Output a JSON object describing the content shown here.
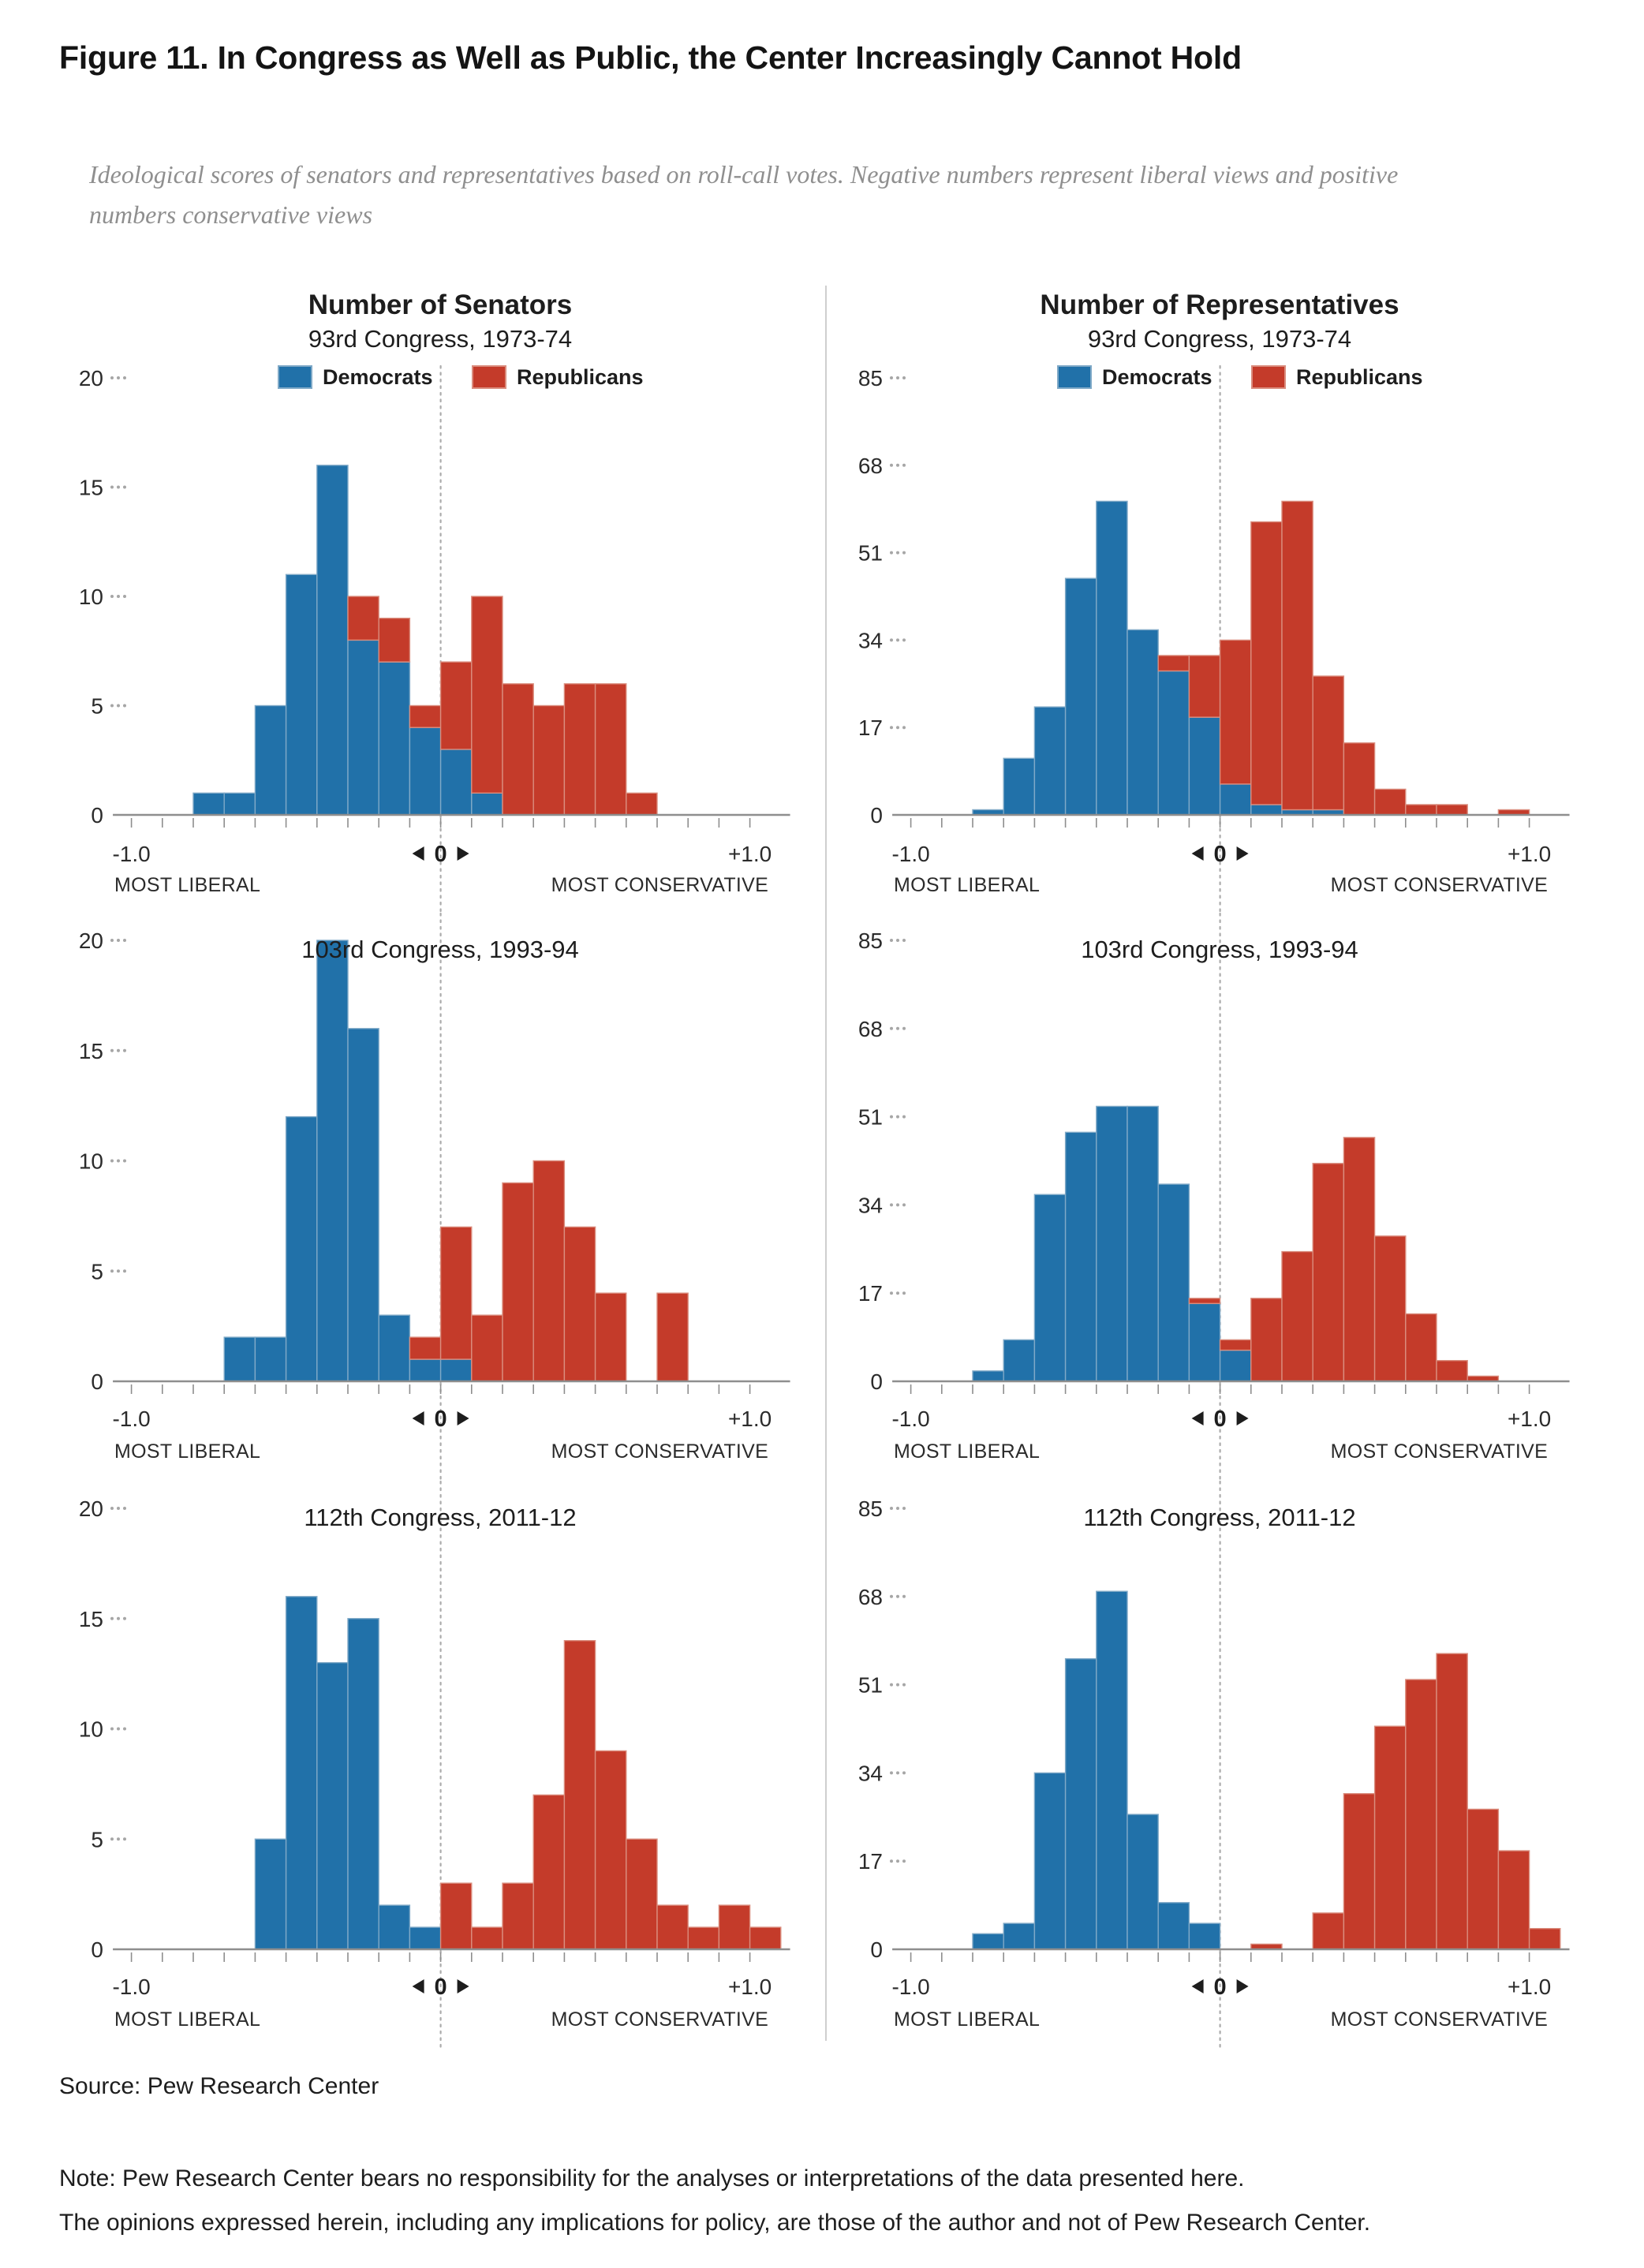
{
  "page": {
    "title": "Figure 11. In Congress as Well as Public, the Center Increasingly Cannot Hold",
    "subtitle": "Ideological scores of senators and representatives based on roll-call votes. Negative numbers represent liberal views and positive numbers conservative views",
    "source": "Source: Pew Research Center",
    "note_line1": "Note: Pew Research Center bears no responsibility for the analyses or interpretations of the data presented here.",
    "note_line2": "The opinions expressed herein, including any implications for policy, are those of the author and not of Pew Research Center."
  },
  "colors": {
    "democrat": "#2171a9",
    "democrat_edge": "#7fa9c7",
    "republican": "#c43b2a",
    "republican_edge": "#da8d7e",
    "axis": "#8e8e8e",
    "grid_dots": "#a6a6a6",
    "zero_line": "#ababab",
    "text": "#2b2b2b",
    "title": "#1d1d1d"
  },
  "legend": {
    "democrats": "Democrats",
    "republicans": "Republicans"
  },
  "axis_labels": {
    "left": "-1.0",
    "center": "0",
    "right": "+1.0",
    "left_caption": "MOST LIBERAL",
    "right_caption": "MOST CONSERVATIVE"
  },
  "chart_data": [
    {
      "type": "bar",
      "subtype": "stacked-histogram",
      "column": "senators",
      "title": "Number of Senators",
      "congress_label": "93rd Congress, 1973-74",
      "show_header": true,
      "show_legend": true,
      "xlabel_range": [
        -1.0,
        1.0
      ],
      "bin_width": 0.1,
      "y_max": 20,
      "y_ticks": [
        0,
        5,
        10,
        15,
        20
      ],
      "series_names": [
        "Democrats",
        "Republicans"
      ],
      "bins": [
        {
          "x": -0.8,
          "dem": 1,
          "rep": 0
        },
        {
          "x": -0.7,
          "dem": 1,
          "rep": 0
        },
        {
          "x": -0.6,
          "dem": 5,
          "rep": 0
        },
        {
          "x": -0.5,
          "dem": 11,
          "rep": 0
        },
        {
          "x": -0.4,
          "dem": 16,
          "rep": 0
        },
        {
          "x": -0.3,
          "dem": 8,
          "rep": 2
        },
        {
          "x": -0.2,
          "dem": 7,
          "rep": 2
        },
        {
          "x": -0.1,
          "dem": 4,
          "rep": 1
        },
        {
          "x": 0.0,
          "dem": 3,
          "rep": 4
        },
        {
          "x": 0.1,
          "dem": 1,
          "rep": 9
        },
        {
          "x": 0.2,
          "dem": 0,
          "rep": 6
        },
        {
          "x": 0.3,
          "dem": 0,
          "rep": 5
        },
        {
          "x": 0.4,
          "dem": 0,
          "rep": 6
        },
        {
          "x": 0.5,
          "dem": 0,
          "rep": 6
        },
        {
          "x": 0.6,
          "dem": 0,
          "rep": 1
        }
      ]
    },
    {
      "type": "bar",
      "subtype": "stacked-histogram",
      "column": "representatives",
      "title": "Number of Representatives",
      "congress_label": "93rd Congress, 1973-74",
      "show_header": true,
      "show_legend": true,
      "xlabel_range": [
        -1.0,
        1.0
      ],
      "bin_width": 0.1,
      "y_max": 85,
      "y_ticks": [
        0,
        17,
        34,
        51,
        68,
        85
      ],
      "series_names": [
        "Democrats",
        "Republicans"
      ],
      "bins": [
        {
          "x": -0.8,
          "dem": 1,
          "rep": 0
        },
        {
          "x": -0.7,
          "dem": 11,
          "rep": 0
        },
        {
          "x": -0.6,
          "dem": 21,
          "rep": 0
        },
        {
          "x": -0.5,
          "dem": 46,
          "rep": 0
        },
        {
          "x": -0.4,
          "dem": 61,
          "rep": 0
        },
        {
          "x": -0.3,
          "dem": 36,
          "rep": 0
        },
        {
          "x": -0.2,
          "dem": 28,
          "rep": 3
        },
        {
          "x": -0.1,
          "dem": 19,
          "rep": 12
        },
        {
          "x": 0.0,
          "dem": 6,
          "rep": 28
        },
        {
          "x": 0.1,
          "dem": 2,
          "rep": 55
        },
        {
          "x": 0.2,
          "dem": 1,
          "rep": 60
        },
        {
          "x": 0.3,
          "dem": 1,
          "rep": 26
        },
        {
          "x": 0.4,
          "dem": 0,
          "rep": 14
        },
        {
          "x": 0.5,
          "dem": 0,
          "rep": 5
        },
        {
          "x": 0.6,
          "dem": 0,
          "rep": 2
        },
        {
          "x": 0.7,
          "dem": 0,
          "rep": 2
        },
        {
          "x": 0.9,
          "dem": 0,
          "rep": 1
        }
      ]
    },
    {
      "type": "bar",
      "subtype": "stacked-histogram",
      "column": "senators",
      "title": "Number of Senators",
      "congress_label": "103rd Congress, 1993-94",
      "show_header": false,
      "show_legend": false,
      "xlabel_range": [
        -1.0,
        1.0
      ],
      "bin_width": 0.1,
      "y_max": 20,
      "y_ticks": [
        0,
        5,
        10,
        15,
        20
      ],
      "series_names": [
        "Democrats",
        "Republicans"
      ],
      "bins": [
        {
          "x": -0.7,
          "dem": 2,
          "rep": 0
        },
        {
          "x": -0.6,
          "dem": 2,
          "rep": 0
        },
        {
          "x": -0.5,
          "dem": 12,
          "rep": 0
        },
        {
          "x": -0.4,
          "dem": 20,
          "rep": 0
        },
        {
          "x": -0.3,
          "dem": 16,
          "rep": 0
        },
        {
          "x": -0.2,
          "dem": 3,
          "rep": 0
        },
        {
          "x": -0.1,
          "dem": 1,
          "rep": 1
        },
        {
          "x": 0.0,
          "dem": 1,
          "rep": 6
        },
        {
          "x": 0.1,
          "dem": 0,
          "rep": 3
        },
        {
          "x": 0.2,
          "dem": 0,
          "rep": 9
        },
        {
          "x": 0.3,
          "dem": 0,
          "rep": 10
        },
        {
          "x": 0.4,
          "dem": 0,
          "rep": 7
        },
        {
          "x": 0.5,
          "dem": 0,
          "rep": 4
        },
        {
          "x": 0.7,
          "dem": 0,
          "rep": 4
        }
      ]
    },
    {
      "type": "bar",
      "subtype": "stacked-histogram",
      "column": "representatives",
      "title": "Number of Representatives",
      "congress_label": "103rd Congress, 1993-94",
      "show_header": false,
      "show_legend": false,
      "xlabel_range": [
        -1.0,
        1.0
      ],
      "bin_width": 0.1,
      "y_max": 85,
      "y_ticks": [
        0,
        17,
        34,
        51,
        68,
        85
      ],
      "series_names": [
        "Democrats",
        "Republicans"
      ],
      "bins": [
        {
          "x": -0.8,
          "dem": 2,
          "rep": 0
        },
        {
          "x": -0.7,
          "dem": 8,
          "rep": 0
        },
        {
          "x": -0.6,
          "dem": 36,
          "rep": 0
        },
        {
          "x": -0.5,
          "dem": 48,
          "rep": 0
        },
        {
          "x": -0.4,
          "dem": 53,
          "rep": 0
        },
        {
          "x": -0.3,
          "dem": 53,
          "rep": 0
        },
        {
          "x": -0.2,
          "dem": 38,
          "rep": 0
        },
        {
          "x": -0.1,
          "dem": 15,
          "rep": 1
        },
        {
          "x": 0.0,
          "dem": 6,
          "rep": 2
        },
        {
          "x": 0.1,
          "dem": 0,
          "rep": 16
        },
        {
          "x": 0.2,
          "dem": 0,
          "rep": 25
        },
        {
          "x": 0.3,
          "dem": 0,
          "rep": 42
        },
        {
          "x": 0.4,
          "dem": 0,
          "rep": 47
        },
        {
          "x": 0.5,
          "dem": 0,
          "rep": 28
        },
        {
          "x": 0.6,
          "dem": 0,
          "rep": 13
        },
        {
          "x": 0.7,
          "dem": 0,
          "rep": 4
        },
        {
          "x": 0.8,
          "dem": 0,
          "rep": 1
        }
      ]
    },
    {
      "type": "bar",
      "subtype": "stacked-histogram",
      "column": "senators",
      "title": "Number of Senators",
      "congress_label": "112th Congress, 2011-12",
      "show_header": false,
      "show_legend": false,
      "xlabel_range": [
        -1.0,
        1.0
      ],
      "bin_width": 0.1,
      "y_max": 20,
      "y_ticks": [
        0,
        5,
        10,
        15,
        20
      ],
      "series_names": [
        "Democrats",
        "Republicans"
      ],
      "bins": [
        {
          "x": -0.6,
          "dem": 5,
          "rep": 0
        },
        {
          "x": -0.5,
          "dem": 16,
          "rep": 0
        },
        {
          "x": -0.4,
          "dem": 13,
          "rep": 0
        },
        {
          "x": -0.3,
          "dem": 15,
          "rep": 0
        },
        {
          "x": -0.2,
          "dem": 2,
          "rep": 0
        },
        {
          "x": -0.1,
          "dem": 1,
          "rep": 0
        },
        {
          "x": 0.0,
          "dem": 0,
          "rep": 3
        },
        {
          "x": 0.1,
          "dem": 0,
          "rep": 1
        },
        {
          "x": 0.2,
          "dem": 0,
          "rep": 3
        },
        {
          "x": 0.3,
          "dem": 0,
          "rep": 7
        },
        {
          "x": 0.4,
          "dem": 0,
          "rep": 14
        },
        {
          "x": 0.5,
          "dem": 0,
          "rep": 9
        },
        {
          "x": 0.6,
          "dem": 0,
          "rep": 5
        },
        {
          "x": 0.7,
          "dem": 0,
          "rep": 2
        },
        {
          "x": 0.8,
          "dem": 0,
          "rep": 1
        },
        {
          "x": 0.9,
          "dem": 0,
          "rep": 2
        },
        {
          "x": 1.0,
          "dem": 0,
          "rep": 1
        }
      ]
    },
    {
      "type": "bar",
      "subtype": "stacked-histogram",
      "column": "representatives",
      "title": "Number of Representatives",
      "congress_label": "112th Congress, 2011-12",
      "show_header": false,
      "show_legend": false,
      "xlabel_range": [
        -1.0,
        1.0
      ],
      "bin_width": 0.1,
      "y_max": 85,
      "y_ticks": [
        0,
        17,
        34,
        51,
        68,
        85
      ],
      "series_names": [
        "Democrats",
        "Republicans"
      ],
      "bins": [
        {
          "x": -0.8,
          "dem": 3,
          "rep": 0
        },
        {
          "x": -0.7,
          "dem": 5,
          "rep": 0
        },
        {
          "x": -0.6,
          "dem": 34,
          "rep": 0
        },
        {
          "x": -0.5,
          "dem": 56,
          "rep": 0
        },
        {
          "x": -0.4,
          "dem": 69,
          "rep": 0
        },
        {
          "x": -0.3,
          "dem": 26,
          "rep": 0
        },
        {
          "x": -0.2,
          "dem": 9,
          "rep": 0
        },
        {
          "x": -0.1,
          "dem": 5,
          "rep": 0
        },
        {
          "x": 0.1,
          "dem": 0,
          "rep": 1
        },
        {
          "x": 0.3,
          "dem": 0,
          "rep": 7
        },
        {
          "x": 0.4,
          "dem": 0,
          "rep": 30
        },
        {
          "x": 0.5,
          "dem": 0,
          "rep": 43
        },
        {
          "x": 0.6,
          "dem": 0,
          "rep": 52
        },
        {
          "x": 0.7,
          "dem": 0,
          "rep": 57
        },
        {
          "x": 0.8,
          "dem": 0,
          "rep": 27
        },
        {
          "x": 0.9,
          "dem": 0,
          "rep": 19
        },
        {
          "x": 1.0,
          "dem": 0,
          "rep": 4
        }
      ]
    }
  ]
}
